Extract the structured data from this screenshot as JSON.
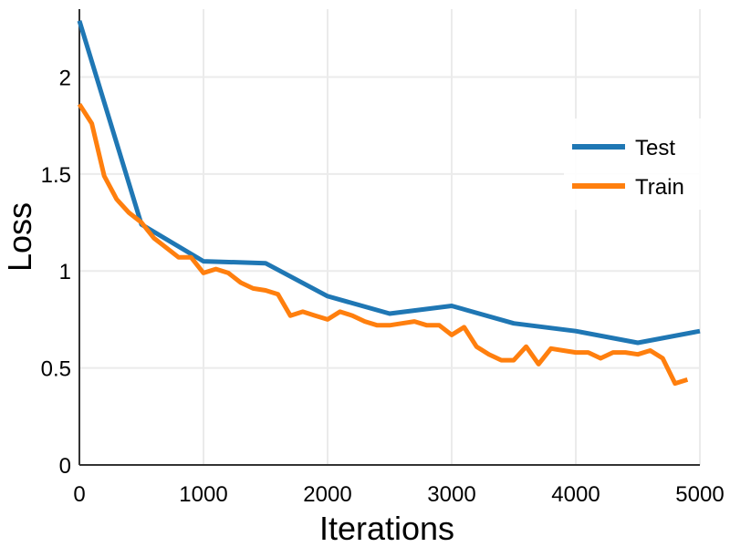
{
  "chart_data": {
    "type": "line",
    "title": "",
    "xlabel": "Iterations",
    "ylabel": "Loss",
    "xlim": [
      0,
      5000
    ],
    "ylim": [
      0,
      2.35
    ],
    "x_ticks": [
      0,
      1000,
      2000,
      3000,
      4000,
      5000
    ],
    "x_tick_labels": [
      "0",
      "1000",
      "2000",
      "3000",
      "4000",
      "5000"
    ],
    "y_ticks": [
      0,
      0.5,
      1,
      1.5,
      2
    ],
    "y_tick_labels": [
      "0",
      "0.5",
      "1",
      "1.5",
      "2"
    ],
    "grid": true,
    "legend_position": "upper-right",
    "series": [
      {
        "name": "Test",
        "color": "#1f77b4",
        "x": [
          0,
          500,
          1000,
          1500,
          2000,
          2500,
          3000,
          3500,
          4000,
          4500,
          5000
        ],
        "y": [
          2.29,
          1.24,
          1.05,
          1.04,
          0.87,
          0.78,
          0.82,
          0.73,
          0.69,
          0.63,
          0.69
        ]
      },
      {
        "name": "Train",
        "color": "#ff7f0e",
        "x": [
          0,
          100,
          200,
          300,
          400,
          500,
          600,
          700,
          800,
          900,
          1000,
          1100,
          1200,
          1300,
          1400,
          1500,
          1600,
          1700,
          1800,
          1900,
          2000,
          2100,
          2200,
          2300,
          2400,
          2500,
          2600,
          2700,
          2800,
          2900,
          3000,
          3100,
          3200,
          3300,
          3400,
          3500,
          3600,
          3700,
          3800,
          3900,
          4000,
          4100,
          4200,
          4300,
          4400,
          4500,
          4600,
          4700,
          4800,
          4900
        ],
        "y": [
          1.86,
          1.76,
          1.49,
          1.37,
          1.3,
          1.25,
          1.17,
          1.12,
          1.07,
          1.07,
          0.99,
          1.01,
          0.99,
          0.94,
          0.91,
          0.9,
          0.88,
          0.77,
          0.79,
          0.77,
          0.75,
          0.79,
          0.77,
          0.74,
          0.72,
          0.72,
          0.73,
          0.74,
          0.72,
          0.72,
          0.67,
          0.71,
          0.61,
          0.57,
          0.54,
          0.54,
          0.61,
          0.52,
          0.6,
          0.59,
          0.58,
          0.58,
          0.55,
          0.58,
          0.58,
          0.57,
          0.59,
          0.55,
          0.42,
          0.44
        ]
      }
    ]
  }
}
